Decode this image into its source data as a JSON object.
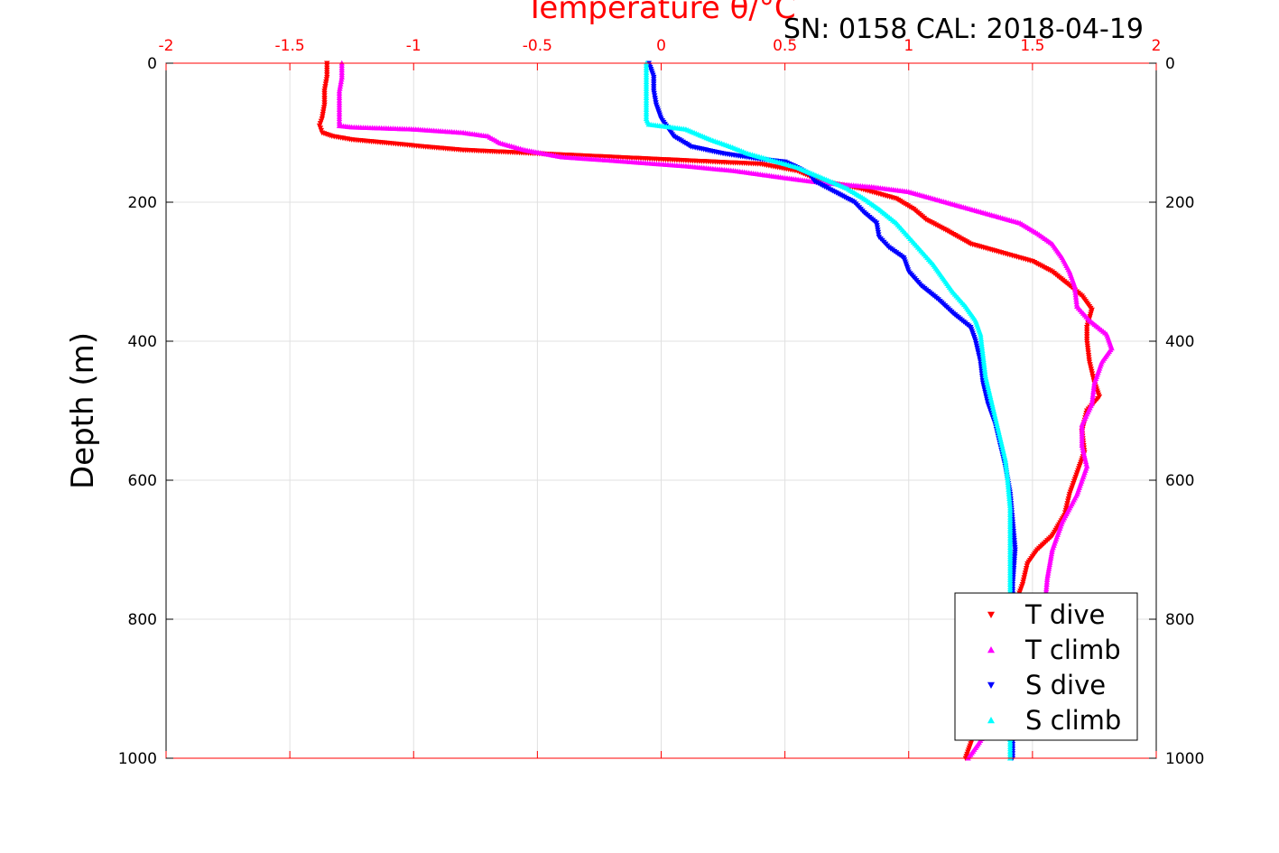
{
  "chart_data": {
    "type": "scatter",
    "title": "Temperature θ/°C",
    "info_text": "SN: 0158  CAL: 2018-04-19",
    "ylabel": "Depth (m)",
    "xlim": [
      -2,
      2
    ],
    "ylim": [
      0,
      1000
    ],
    "y_reversed": true,
    "grid": true,
    "x_ticks": [
      "-2",
      "-1.5",
      "-1",
      "-0.5",
      "0",
      "0.5",
      "1",
      "1.5",
      "2"
    ],
    "y_ticks_left": [
      "0",
      "200",
      "400",
      "600",
      "800",
      "1000"
    ],
    "y_ticks_right": [
      "0",
      "200",
      "400",
      "600",
      "800",
      "1000"
    ],
    "legend_position": "bottom-right",
    "series": [
      {
        "name": "T dive",
        "color": "#ff0000",
        "marker": "triangle-down",
        "points": [
          [
            -1.35,
            0
          ],
          [
            -1.35,
            20
          ],
          [
            -1.36,
            40
          ],
          [
            -1.36,
            60
          ],
          [
            -1.37,
            80
          ],
          [
            -1.38,
            90
          ],
          [
            -1.37,
            100
          ],
          [
            -1.33,
            105
          ],
          [
            -1.25,
            110
          ],
          [
            -1.1,
            115
          ],
          [
            -0.96,
            120
          ],
          [
            -0.8,
            125
          ],
          [
            -0.5,
            130
          ],
          [
            -0.2,
            135
          ],
          [
            0.1,
            140
          ],
          [
            0.4,
            145
          ],
          [
            0.55,
            155
          ],
          [
            0.65,
            170
          ],
          [
            0.8,
            180
          ],
          [
            0.95,
            195
          ],
          [
            1.02,
            210
          ],
          [
            1.07,
            225
          ],
          [
            1.15,
            240
          ],
          [
            1.25,
            260
          ],
          [
            1.4,
            275
          ],
          [
            1.5,
            285
          ],
          [
            1.58,
            300
          ],
          [
            1.65,
            320
          ],
          [
            1.7,
            335
          ],
          [
            1.74,
            355
          ],
          [
            1.72,
            380
          ],
          [
            1.72,
            400
          ],
          [
            1.73,
            430
          ],
          [
            1.75,
            460
          ],
          [
            1.77,
            480
          ],
          [
            1.72,
            500
          ],
          [
            1.7,
            530
          ],
          [
            1.71,
            560
          ],
          [
            1.69,
            580
          ],
          [
            1.65,
            620
          ],
          [
            1.63,
            650
          ],
          [
            1.58,
            680
          ],
          [
            1.52,
            700
          ],
          [
            1.48,
            720
          ],
          [
            1.46,
            750
          ],
          [
            1.42,
            790
          ],
          [
            1.36,
            830
          ],
          [
            1.33,
            870
          ],
          [
            1.31,
            900
          ],
          [
            1.28,
            940
          ],
          [
            1.26,
            970
          ],
          [
            1.23,
            1000
          ]
        ]
      },
      {
        "name": "T climb",
        "color": "#ff00ff",
        "marker": "triangle-up",
        "points": [
          [
            -1.29,
            0
          ],
          [
            -1.29,
            20
          ],
          [
            -1.3,
            40
          ],
          [
            -1.3,
            60
          ],
          [
            -1.3,
            80
          ],
          [
            -1.3,
            90
          ],
          [
            -1.25,
            92
          ],
          [
            -1.0,
            95
          ],
          [
            -0.8,
            100
          ],
          [
            -0.7,
            105
          ],
          [
            -0.65,
            115
          ],
          [
            -0.55,
            125
          ],
          [
            -0.4,
            135
          ],
          [
            -0.2,
            140
          ],
          [
            0.1,
            148
          ],
          [
            0.3,
            155
          ],
          [
            0.5,
            165
          ],
          [
            0.65,
            172
          ],
          [
            0.85,
            178
          ],
          [
            1.0,
            185
          ],
          [
            1.15,
            200
          ],
          [
            1.3,
            215
          ],
          [
            1.45,
            230
          ],
          [
            1.52,
            245
          ],
          [
            1.58,
            260
          ],
          [
            1.62,
            280
          ],
          [
            1.65,
            300
          ],
          [
            1.67,
            320
          ],
          [
            1.68,
            350
          ],
          [
            1.73,
            370
          ],
          [
            1.8,
            390
          ],
          [
            1.82,
            410
          ],
          [
            1.78,
            430
          ],
          [
            1.75,
            460
          ],
          [
            1.74,
            490
          ],
          [
            1.7,
            520
          ],
          [
            1.7,
            550
          ],
          [
            1.72,
            580
          ],
          [
            1.68,
            620
          ],
          [
            1.62,
            660
          ],
          [
            1.58,
            700
          ],
          [
            1.56,
            740
          ],
          [
            1.55,
            780
          ],
          [
            1.52,
            820
          ],
          [
            1.48,
            860
          ],
          [
            1.42,
            900
          ],
          [
            1.35,
            940
          ],
          [
            1.28,
            980
          ],
          [
            1.24,
            1000
          ]
        ]
      },
      {
        "name": "S dive",
        "color": "#0000ff",
        "marker": "triangle-down",
        "points": [
          [
            -0.05,
            0
          ],
          [
            -0.03,
            20
          ],
          [
            -0.03,
            40
          ],
          [
            -0.02,
            60
          ],
          [
            0.0,
            80
          ],
          [
            0.02,
            90
          ],
          [
            0.05,
            105
          ],
          [
            0.12,
            120
          ],
          [
            0.25,
            130
          ],
          [
            0.4,
            138
          ],
          [
            0.5,
            142
          ],
          [
            0.55,
            150
          ],
          [
            0.6,
            160
          ],
          [
            0.62,
            170
          ],
          [
            0.7,
            185
          ],
          [
            0.78,
            200
          ],
          [
            0.82,
            215
          ],
          [
            0.87,
            230
          ],
          [
            0.88,
            250
          ],
          [
            0.92,
            265
          ],
          [
            0.98,
            280
          ],
          [
            1.0,
            300
          ],
          [
            1.05,
            320
          ],
          [
            1.12,
            340
          ],
          [
            1.18,
            360
          ],
          [
            1.25,
            380
          ],
          [
            1.27,
            400
          ],
          [
            1.29,
            430
          ],
          [
            1.3,
            460
          ],
          [
            1.32,
            490
          ],
          [
            1.35,
            520
          ],
          [
            1.37,
            550
          ],
          [
            1.39,
            580
          ],
          [
            1.41,
            620
          ],
          [
            1.42,
            660
          ],
          [
            1.43,
            700
          ],
          [
            1.42,
            750
          ],
          [
            1.42,
            800
          ],
          [
            1.42,
            850
          ],
          [
            1.42,
            900
          ],
          [
            1.42,
            950
          ],
          [
            1.42,
            1000
          ]
        ]
      },
      {
        "name": "S climb",
        "color": "#00ffff",
        "marker": "triangle-up",
        "points": [
          [
            -0.06,
            0
          ],
          [
            -0.06,
            20
          ],
          [
            -0.06,
            40
          ],
          [
            -0.06,
            60
          ],
          [
            -0.06,
            80
          ],
          [
            -0.05,
            88
          ],
          [
            0.1,
            95
          ],
          [
            0.2,
            110
          ],
          [
            0.28,
            120
          ],
          [
            0.35,
            130
          ],
          [
            0.45,
            140
          ],
          [
            0.55,
            150
          ],
          [
            0.65,
            165
          ],
          [
            0.75,
            180
          ],
          [
            0.82,
            195
          ],
          [
            0.88,
            210
          ],
          [
            0.95,
            230
          ],
          [
            1.0,
            250
          ],
          [
            1.05,
            270
          ],
          [
            1.1,
            290
          ],
          [
            1.14,
            310
          ],
          [
            1.18,
            330
          ],
          [
            1.23,
            350
          ],
          [
            1.27,
            370
          ],
          [
            1.29,
            390
          ],
          [
            1.3,
            420
          ],
          [
            1.31,
            450
          ],
          [
            1.33,
            480
          ],
          [
            1.35,
            510
          ],
          [
            1.37,
            540
          ],
          [
            1.39,
            570
          ],
          [
            1.4,
            600
          ],
          [
            1.41,
            640
          ],
          [
            1.41,
            680
          ],
          [
            1.41,
            720
          ],
          [
            1.41,
            760
          ],
          [
            1.41,
            800
          ],
          [
            1.41,
            850
          ],
          [
            1.41,
            900
          ],
          [
            1.41,
            950
          ],
          [
            1.41,
            1000
          ]
        ]
      }
    ]
  }
}
